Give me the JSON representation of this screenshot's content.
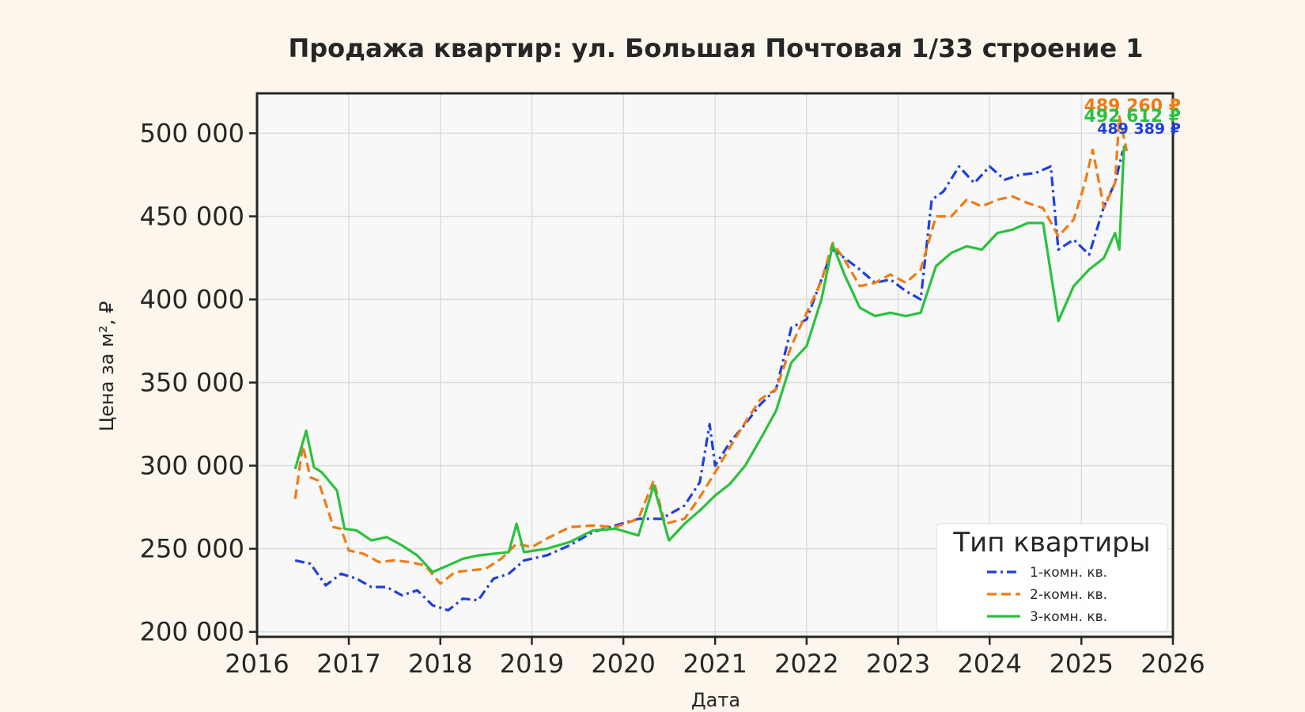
{
  "chart_data": {
    "type": "line",
    "title": "Продажа квартир: ул. Большая Почтовая 1/33 строение 1",
    "xlabel": "Дата",
    "ylabel": "Цена за м², ₽",
    "xlim": [
      "2016-01-01",
      "2026-01-01"
    ],
    "ylim": [
      197000,
      524000
    ],
    "x_ticks": [
      "2016",
      "2017",
      "2018",
      "2019",
      "2020",
      "2021",
      "2022",
      "2023",
      "2024",
      "2025",
      "2026"
    ],
    "y_ticks": [
      200000,
      250000,
      300000,
      350000,
      400000,
      450000,
      500000
    ],
    "y_tick_labels": [
      "200 000",
      "250 000",
      "300 000",
      "350 000",
      "400 000",
      "450 000",
      "500 000"
    ],
    "grid": true,
    "legend": {
      "title": "Тип квартиры",
      "position": "lower-right"
    },
    "series": [
      {
        "name": "1-комн. кв.",
        "color": "#1f3fdc",
        "dash": "dashdot",
        "end_label": "489 389 ₽",
        "points": [
          [
            "2016-06-01",
            243000
          ],
          [
            "2016-08-01",
            241000
          ],
          [
            "2016-10-01",
            228000
          ],
          [
            "2016-12-01",
            235000
          ],
          [
            "2017-02-01",
            232000
          ],
          [
            "2017-04-01",
            227000
          ],
          [
            "2017-06-01",
            227000
          ],
          [
            "2017-08-01",
            222000
          ],
          [
            "2017-10-01",
            225000
          ],
          [
            "2017-12-01",
            216000
          ],
          [
            "2018-02-01",
            213000
          ],
          [
            "2018-04-01",
            220000
          ],
          [
            "2018-06-01",
            219000
          ],
          [
            "2018-08-01",
            232000
          ],
          [
            "2018-10-01",
            235000
          ],
          [
            "2018-12-01",
            243000
          ],
          [
            "2019-03-01",
            246000
          ],
          [
            "2019-06-01",
            252000
          ],
          [
            "2019-09-01",
            260000
          ],
          [
            "2019-12-01",
            264000
          ],
          [
            "2020-03-01",
            268000
          ],
          [
            "2020-06-01",
            268000
          ],
          [
            "2020-09-01",
            276000
          ],
          [
            "2020-11-01",
            290000
          ],
          [
            "2020-12-10",
            325000
          ],
          [
            "2021-01-01",
            300000
          ],
          [
            "2021-03-01",
            314000
          ],
          [
            "2021-05-01",
            325000
          ],
          [
            "2021-07-01",
            337000
          ],
          [
            "2021-09-01",
            346000
          ],
          [
            "2021-11-01",
            383000
          ],
          [
            "2022-01-01",
            388000
          ],
          [
            "2022-03-01",
            412000
          ],
          [
            "2022-04-15",
            430000
          ],
          [
            "2022-06-01",
            425000
          ],
          [
            "2022-08-01",
            418000
          ],
          [
            "2022-10-01",
            410000
          ],
          [
            "2022-12-01",
            412000
          ],
          [
            "2023-02-01",
            405000
          ],
          [
            "2023-04-01",
            400000
          ],
          [
            "2023-05-15",
            460000
          ],
          [
            "2023-07-01",
            465000
          ],
          [
            "2023-09-01",
            480000
          ],
          [
            "2023-11-01",
            470000
          ],
          [
            "2024-01-01",
            480000
          ],
          [
            "2024-03-01",
            472000
          ],
          [
            "2024-05-01",
            475000
          ],
          [
            "2024-07-01",
            476000
          ],
          [
            "2024-09-01",
            480000
          ],
          [
            "2024-10-01",
            430000
          ],
          [
            "2024-12-01",
            436000
          ],
          [
            "2025-02-01",
            427000
          ],
          [
            "2025-04-01",
            456000
          ],
          [
            "2025-05-15",
            470000
          ],
          [
            "2025-06-15",
            489389
          ]
        ]
      },
      {
        "name": "2-комн. кв.",
        "color": "#f07b14",
        "dash": "dashed",
        "end_label": "489 260 ₽",
        "points": [
          [
            "2016-06-01",
            280000
          ],
          [
            "2016-07-01",
            312000
          ],
          [
            "2016-08-01",
            293000
          ],
          [
            "2016-09-01",
            291000
          ],
          [
            "2016-11-01",
            263000
          ],
          [
            "2016-12-01",
            262000
          ],
          [
            "2017-01-01",
            249000
          ],
          [
            "2017-03-01",
            247000
          ],
          [
            "2017-05-01",
            242000
          ],
          [
            "2017-07-01",
            243000
          ],
          [
            "2017-09-01",
            242000
          ],
          [
            "2017-11-01",
            240000
          ],
          [
            "2018-01-01",
            229000
          ],
          [
            "2018-03-01",
            236000
          ],
          [
            "2018-05-01",
            237000
          ],
          [
            "2018-07-01",
            238000
          ],
          [
            "2018-09-01",
            244000
          ],
          [
            "2018-11-01",
            253000
          ],
          [
            "2019-01-01",
            251000
          ],
          [
            "2019-03-01",
            256000
          ],
          [
            "2019-06-01",
            263000
          ],
          [
            "2019-09-01",
            264000
          ],
          [
            "2019-12-01",
            263000
          ],
          [
            "2020-03-01",
            268000
          ],
          [
            "2020-05-01",
            291000
          ],
          [
            "2020-06-15",
            265000
          ],
          [
            "2020-09-01",
            268000
          ],
          [
            "2020-11-01",
            281000
          ],
          [
            "2021-01-01",
            296000
          ],
          [
            "2021-03-01",
            311000
          ],
          [
            "2021-05-01",
            326000
          ],
          [
            "2021-07-01",
            340000
          ],
          [
            "2021-09-01",
            346000
          ],
          [
            "2021-11-01",
            372000
          ],
          [
            "2022-01-01",
            392000
          ],
          [
            "2022-03-01",
            411000
          ],
          [
            "2022-04-15",
            434000
          ],
          [
            "2022-06-01",
            424000
          ],
          [
            "2022-08-01",
            408000
          ],
          [
            "2022-10-01",
            410000
          ],
          [
            "2022-12-01",
            415000
          ],
          [
            "2023-02-01",
            410000
          ],
          [
            "2023-04-01",
            418000
          ],
          [
            "2023-06-01",
            450000
          ],
          [
            "2023-08-01",
            450000
          ],
          [
            "2023-10-01",
            460000
          ],
          [
            "2023-12-01",
            456000
          ],
          [
            "2024-02-01",
            460000
          ],
          [
            "2024-04-01",
            462000
          ],
          [
            "2024-06-01",
            458000
          ],
          [
            "2024-08-01",
            455000
          ],
          [
            "2024-10-01",
            438000
          ],
          [
            "2024-12-01",
            448000
          ],
          [
            "2025-01-15",
            470000
          ],
          [
            "2025-02-15",
            490000
          ],
          [
            "2025-04-01",
            455000
          ],
          [
            "2025-05-15",
            470000
          ],
          [
            "2025-06-01",
            510000
          ],
          [
            "2025-07-01",
            489260
          ]
        ]
      },
      {
        "name": "3-комн. кв.",
        "color": "#2bc13f",
        "dash": "solid",
        "end_label": "492 612 ₽",
        "points": [
          [
            "2016-06-01",
            298000
          ],
          [
            "2016-07-15",
            321000
          ],
          [
            "2016-08-15",
            299000
          ],
          [
            "2016-09-15",
            296000
          ],
          [
            "2016-11-15",
            285000
          ],
          [
            "2016-12-15",
            262000
          ],
          [
            "2017-02-01",
            261000
          ],
          [
            "2017-04-01",
            255000
          ],
          [
            "2017-06-01",
            257000
          ],
          [
            "2017-08-01",
            252000
          ],
          [
            "2017-10-01",
            246000
          ],
          [
            "2017-12-01",
            236000
          ],
          [
            "2018-02-01",
            240000
          ],
          [
            "2018-04-01",
            244000
          ],
          [
            "2018-06-01",
            246000
          ],
          [
            "2018-08-01",
            247000
          ],
          [
            "2018-10-01",
            248000
          ],
          [
            "2018-11-01",
            265000
          ],
          [
            "2018-12-01",
            248000
          ],
          [
            "2019-03-01",
            250000
          ],
          [
            "2019-06-01",
            254000
          ],
          [
            "2019-09-01",
            261000
          ],
          [
            "2019-12-01",
            262000
          ],
          [
            "2020-03-01",
            258000
          ],
          [
            "2020-05-01",
            288000
          ],
          [
            "2020-07-01",
            255000
          ],
          [
            "2020-09-01",
            265000
          ],
          [
            "2020-11-01",
            273000
          ],
          [
            "2021-01-01",
            282000
          ],
          [
            "2021-03-01",
            289000
          ],
          [
            "2021-05-01",
            300000
          ],
          [
            "2021-07-01",
            316000
          ],
          [
            "2021-09-01",
            333000
          ],
          [
            "2021-11-01",
            362000
          ],
          [
            "2022-01-01",
            372000
          ],
          [
            "2022-03-01",
            400000
          ],
          [
            "2022-04-15",
            433000
          ],
          [
            "2022-06-01",
            415000
          ],
          [
            "2022-08-01",
            395000
          ],
          [
            "2022-10-01",
            390000
          ],
          [
            "2022-12-01",
            392000
          ],
          [
            "2023-02-01",
            390000
          ],
          [
            "2023-04-01",
            392000
          ],
          [
            "2023-06-01",
            420000
          ],
          [
            "2023-08-01",
            428000
          ],
          [
            "2023-10-01",
            432000
          ],
          [
            "2023-12-01",
            430000
          ],
          [
            "2024-02-01",
            440000
          ],
          [
            "2024-04-01",
            442000
          ],
          [
            "2024-06-01",
            446000
          ],
          [
            "2024-08-01",
            446000
          ],
          [
            "2024-10-01",
            387000
          ],
          [
            "2024-12-01",
            408000
          ],
          [
            "2025-02-01",
            418000
          ],
          [
            "2025-04-01",
            425000
          ],
          [
            "2025-05-15",
            440000
          ],
          [
            "2025-06-01",
            430000
          ],
          [
            "2025-06-20",
            492612
          ]
        ]
      }
    ]
  }
}
